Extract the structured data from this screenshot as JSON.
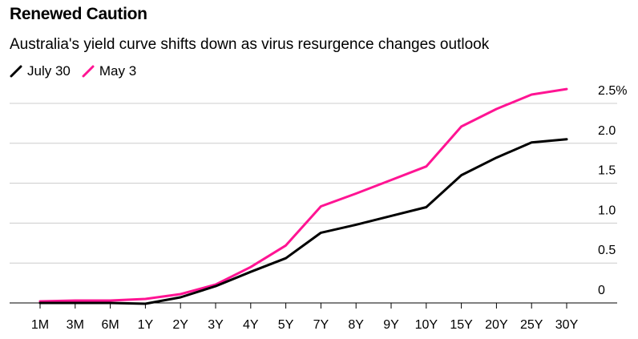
{
  "header": {
    "title": "Renewed Caution",
    "subtitle": "Australia's yield curve shifts down as virus resurgence changes outlook"
  },
  "colors": {
    "july": "#000000",
    "may": "#ff1493",
    "grid": "#cccccc"
  },
  "chart_data": {
    "type": "line",
    "title": "Renewed Caution",
    "subtitle": "Australia's yield curve shifts down as virus resurgence changes outlook",
    "categories": [
      "1M",
      "3M",
      "6M",
      "1Y",
      "2Y",
      "3Y",
      "4Y",
      "5Y",
      "7Y",
      "8Y",
      "9Y",
      "10Y",
      "15Y",
      "20Y",
      "25Y",
      "30Y"
    ],
    "series": [
      {
        "name": "July 30",
        "color": "#000000",
        "values": [
          0.0,
          0.0,
          0.0,
          -0.01,
          0.07,
          0.21,
          0.39,
          0.56,
          0.88,
          0.98,
          1.09,
          1.2,
          1.6,
          1.82,
          2.01,
          2.05
        ]
      },
      {
        "name": "May 3",
        "color": "#ff1493",
        "values": [
          0.02,
          0.03,
          0.03,
          0.05,
          0.11,
          0.23,
          0.45,
          0.72,
          1.21,
          1.37,
          1.54,
          1.71,
          2.21,
          2.43,
          2.61,
          2.68
        ]
      }
    ],
    "yticks": [
      0,
      0.5,
      1.0,
      1.5,
      2.0,
      2.5
    ],
    "ytick_labels": [
      "0",
      "0.5",
      "1.0",
      "1.5",
      "2.0",
      "2.5%"
    ],
    "ylim": [
      0,
      2.5
    ],
    "grid": true,
    "legend_position": "top-left"
  }
}
